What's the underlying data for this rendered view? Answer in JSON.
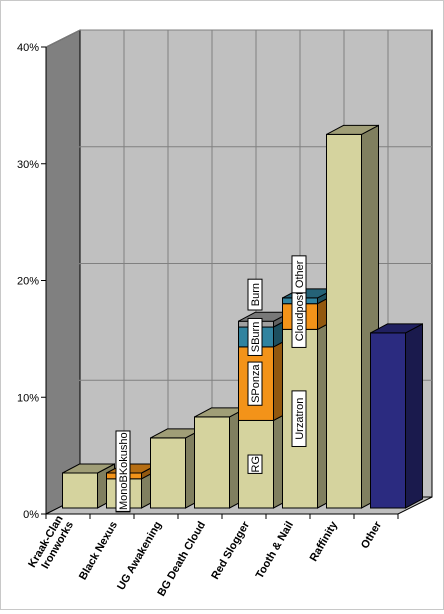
{
  "chart_data": {
    "type": "bar",
    "stacked": true,
    "style": "3d",
    "grid": true,
    "legend": "none",
    "ylim": [
      0,
      40
    ],
    "y_tick_labels": [
      "0%",
      "10%",
      "20%",
      "30%",
      "40%"
    ],
    "y_ticks": [
      0,
      10,
      20,
      30,
      40
    ],
    "categories": [
      "Kraak-Clan Ironworks",
      "Black Nexus",
      "UG Awakening",
      "BG Death Cloud",
      "Red Slogger",
      "Tooth & Nail",
      "Raffinity",
      "Other"
    ],
    "category_lines": [
      [
        "Kraak-Clan",
        "Ironworks"
      ],
      [
        "Black Nexus"
      ],
      [
        "UG Awakening"
      ],
      [
        "BG Death Cloud"
      ],
      [
        "Red Slogger"
      ],
      [
        "Tooth & Nail"
      ],
      [
        "Raffinity"
      ],
      [
        "Other"
      ]
    ],
    "bars": [
      {
        "category": "Kraak-Clan Ironworks",
        "segments": [
          {
            "value": 3,
            "color": "#d5d39e"
          }
        ]
      },
      {
        "category": "Black Nexus",
        "segments": [
          {
            "value": 2.5,
            "color": "#d5d39e",
            "label": "MonoB"
          },
          {
            "value": 0.5,
            "color": "#f39319",
            "label": "MonoBKokusho"
          }
        ]
      },
      {
        "category": "UG Awakening",
        "segments": [
          {
            "value": 6,
            "color": "#d5d39e"
          }
        ]
      },
      {
        "category": "BG Death Cloud",
        "segments": [
          {
            "value": 7.8,
            "color": "#d5d39e"
          }
        ]
      },
      {
        "category": "Red Slogger",
        "segments": [
          {
            "value": 7.5,
            "color": "#d5d39e",
            "label": "RG"
          },
          {
            "value": 6.3,
            "color": "#f39319",
            "label": "SPonza"
          },
          {
            "value": 1.7,
            "color": "#31839f",
            "label": "SBurn"
          },
          {
            "value": 0.5,
            "color": "#a0a0a0",
            "label": "Burn"
          }
        ]
      },
      {
        "category": "Tooth & Nail",
        "segments": [
          {
            "value": 15.3,
            "color": "#d5d39e",
            "label": "Urzatron"
          },
          {
            "value": 2.2,
            "color": "#f39319",
            "label": "Cloudpost"
          },
          {
            "value": 0.5,
            "color": "#31839f",
            "label": "Other"
          }
        ]
      },
      {
        "category": "Raffinity",
        "segments": [
          {
            "value": 32,
            "color": "#d5d39e"
          }
        ]
      },
      {
        "category": "Other",
        "segments": [
          {
            "value": 15,
            "color": "#2b2b80"
          }
        ]
      }
    ],
    "colors": {
      "wall_back": "#c0c0c0",
      "wall_side": "#808080",
      "floor": "#bfbfbf",
      "grid": "#808080"
    }
  }
}
